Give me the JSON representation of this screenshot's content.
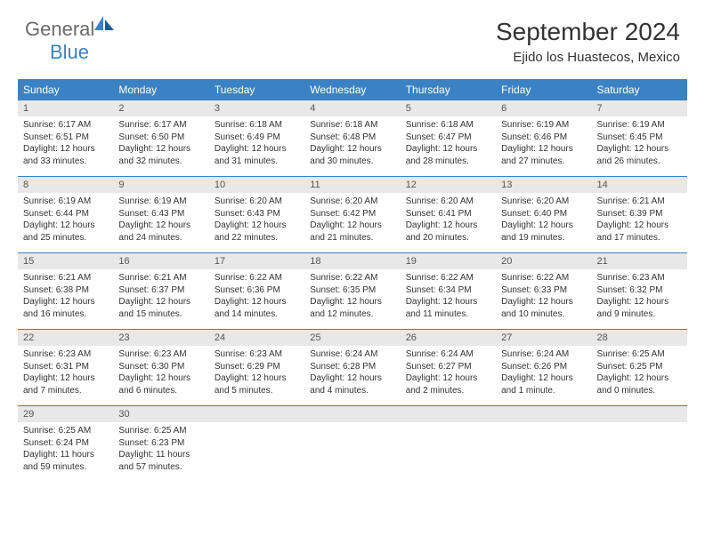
{
  "logo": {
    "main": "General",
    "sub": "Blue"
  },
  "title": "September 2024",
  "location": "Ejido los Huastecos, Mexico",
  "colors": {
    "headerBg": "#3b82c4",
    "headerText": "#ffffff",
    "dayNumBg": "#e8e8e8",
    "pageBg": "#ffffff",
    "logoGray": "#6b6b6b",
    "logoBlue": "#3b82c4"
  },
  "dayNames": [
    "Sunday",
    "Monday",
    "Tuesday",
    "Wednesday",
    "Thursday",
    "Friday",
    "Saturday"
  ],
  "weeks": [
    {
      "nums": [
        "1",
        "2",
        "3",
        "4",
        "5",
        "6",
        "7"
      ],
      "cells": [
        {
          "sunrise": "Sunrise: 6:17 AM",
          "sunset": "Sunset: 6:51 PM",
          "day1": "Daylight: 12 hours",
          "day2": "and 33 minutes."
        },
        {
          "sunrise": "Sunrise: 6:17 AM",
          "sunset": "Sunset: 6:50 PM",
          "day1": "Daylight: 12 hours",
          "day2": "and 32 minutes."
        },
        {
          "sunrise": "Sunrise: 6:18 AM",
          "sunset": "Sunset: 6:49 PM",
          "day1": "Daylight: 12 hours",
          "day2": "and 31 minutes."
        },
        {
          "sunrise": "Sunrise: 6:18 AM",
          "sunset": "Sunset: 6:48 PM",
          "day1": "Daylight: 12 hours",
          "day2": "and 30 minutes."
        },
        {
          "sunrise": "Sunrise: 6:18 AM",
          "sunset": "Sunset: 6:47 PM",
          "day1": "Daylight: 12 hours",
          "day2": "and 28 minutes."
        },
        {
          "sunrise": "Sunrise: 6:19 AM",
          "sunset": "Sunset: 6:46 PM",
          "day1": "Daylight: 12 hours",
          "day2": "and 27 minutes."
        },
        {
          "sunrise": "Sunrise: 6:19 AM",
          "sunset": "Sunset: 6:45 PM",
          "day1": "Daylight: 12 hours",
          "day2": "and 26 minutes."
        }
      ]
    },
    {
      "nums": [
        "8",
        "9",
        "10",
        "11",
        "12",
        "13",
        "14"
      ],
      "cells": [
        {
          "sunrise": "Sunrise: 6:19 AM",
          "sunset": "Sunset: 6:44 PM",
          "day1": "Daylight: 12 hours",
          "day2": "and 25 minutes."
        },
        {
          "sunrise": "Sunrise: 6:19 AM",
          "sunset": "Sunset: 6:43 PM",
          "day1": "Daylight: 12 hours",
          "day2": "and 24 minutes."
        },
        {
          "sunrise": "Sunrise: 6:20 AM",
          "sunset": "Sunset: 6:43 PM",
          "day1": "Daylight: 12 hours",
          "day2": "and 22 minutes."
        },
        {
          "sunrise": "Sunrise: 6:20 AM",
          "sunset": "Sunset: 6:42 PM",
          "day1": "Daylight: 12 hours",
          "day2": "and 21 minutes."
        },
        {
          "sunrise": "Sunrise: 6:20 AM",
          "sunset": "Sunset: 6:41 PM",
          "day1": "Daylight: 12 hours",
          "day2": "and 20 minutes."
        },
        {
          "sunrise": "Sunrise: 6:20 AM",
          "sunset": "Sunset: 6:40 PM",
          "day1": "Daylight: 12 hours",
          "day2": "and 19 minutes."
        },
        {
          "sunrise": "Sunrise: 6:21 AM",
          "sunset": "Sunset: 6:39 PM",
          "day1": "Daylight: 12 hours",
          "day2": "and 17 minutes."
        }
      ]
    },
    {
      "nums": [
        "15",
        "16",
        "17",
        "18",
        "19",
        "20",
        "21"
      ],
      "cells": [
        {
          "sunrise": "Sunrise: 6:21 AM",
          "sunset": "Sunset: 6:38 PM",
          "day1": "Daylight: 12 hours",
          "day2": "and 16 minutes."
        },
        {
          "sunrise": "Sunrise: 6:21 AM",
          "sunset": "Sunset: 6:37 PM",
          "day1": "Daylight: 12 hours",
          "day2": "and 15 minutes."
        },
        {
          "sunrise": "Sunrise: 6:22 AM",
          "sunset": "Sunset: 6:36 PM",
          "day1": "Daylight: 12 hours",
          "day2": "and 14 minutes."
        },
        {
          "sunrise": "Sunrise: 6:22 AM",
          "sunset": "Sunset: 6:35 PM",
          "day1": "Daylight: 12 hours",
          "day2": "and 12 minutes."
        },
        {
          "sunrise": "Sunrise: 6:22 AM",
          "sunset": "Sunset: 6:34 PM",
          "day1": "Daylight: 12 hours",
          "day2": "and 11 minutes."
        },
        {
          "sunrise": "Sunrise: 6:22 AM",
          "sunset": "Sunset: 6:33 PM",
          "day1": "Daylight: 12 hours",
          "day2": "and 10 minutes."
        },
        {
          "sunrise": "Sunrise: 6:23 AM",
          "sunset": "Sunset: 6:32 PM",
          "day1": "Daylight: 12 hours",
          "day2": "and 9 minutes."
        }
      ]
    },
    {
      "nums": [
        "22",
        "23",
        "24",
        "25",
        "26",
        "27",
        "28"
      ],
      "cells": [
        {
          "sunrise": "Sunrise: 6:23 AM",
          "sunset": "Sunset: 6:31 PM",
          "day1": "Daylight: 12 hours",
          "day2": "and 7 minutes."
        },
        {
          "sunrise": "Sunrise: 6:23 AM",
          "sunset": "Sunset: 6:30 PM",
          "day1": "Daylight: 12 hours",
          "day2": "and 6 minutes."
        },
        {
          "sunrise": "Sunrise: 6:23 AM",
          "sunset": "Sunset: 6:29 PM",
          "day1": "Daylight: 12 hours",
          "day2": "and 5 minutes."
        },
        {
          "sunrise": "Sunrise: 6:24 AM",
          "sunset": "Sunset: 6:28 PM",
          "day1": "Daylight: 12 hours",
          "day2": "and 4 minutes."
        },
        {
          "sunrise": "Sunrise: 6:24 AM",
          "sunset": "Sunset: 6:27 PM",
          "day1": "Daylight: 12 hours",
          "day2": "and 2 minutes."
        },
        {
          "sunrise": "Sunrise: 6:24 AM",
          "sunset": "Sunset: 6:26 PM",
          "day1": "Daylight: 12 hours",
          "day2": "and 1 minute."
        },
        {
          "sunrise": "Sunrise: 6:25 AM",
          "sunset": "Sunset: 6:25 PM",
          "day1": "Daylight: 12 hours",
          "day2": "and 0 minutes."
        }
      ]
    },
    {
      "nums": [
        "29",
        "30",
        "",
        "",
        "",
        "",
        ""
      ],
      "cells": [
        {
          "sunrise": "Sunrise: 6:25 AM",
          "sunset": "Sunset: 6:24 PM",
          "day1": "Daylight: 11 hours",
          "day2": "and 59 minutes."
        },
        {
          "sunrise": "Sunrise: 6:25 AM",
          "sunset": "Sunset: 6:23 PM",
          "day1": "Daylight: 11 hours",
          "day2": "and 57 minutes."
        },
        null,
        null,
        null,
        null,
        null
      ]
    }
  ]
}
